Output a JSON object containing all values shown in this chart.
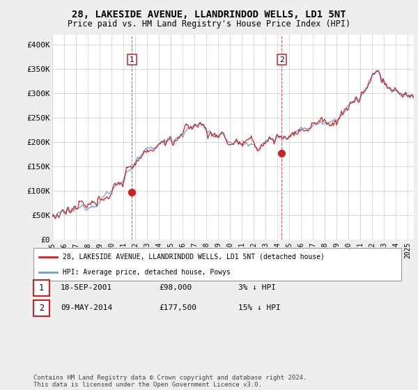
{
  "title_line1": "28, LAKESIDE AVENUE, LLANDRINDOD WELLS, LD1 5NT",
  "title_line2": "Price paid vs. HM Land Registry's House Price Index (HPI)",
  "ylabel_ticks": [
    "£0",
    "£50K",
    "£100K",
    "£150K",
    "£200K",
    "£250K",
    "£300K",
    "£350K",
    "£400K"
  ],
  "ytick_values": [
    0,
    50000,
    100000,
    150000,
    200000,
    250000,
    300000,
    350000,
    400000
  ],
  "ylim": [
    0,
    420000
  ],
  "xlim_start": 1995.0,
  "xlim_end": 2025.5,
  "hpi_color": "#7799cc",
  "price_color": "#cc2222",
  "marker1_x": 2001.72,
  "marker1_y": 98000,
  "marker2_x": 2014.36,
  "marker2_y": 177500,
  "vline1_x": 2001.72,
  "vline2_x": 2014.36,
  "legend_line1": "28, LAKESIDE AVENUE, LLANDRINDOD WELLS, LD1 5NT (detached house)",
  "legend_line2": "HPI: Average price, detached house, Powys",
  "table_row1": [
    "1",
    "18-SEP-2001",
    "£98,000",
    "3% ↓ HPI"
  ],
  "table_row2": [
    "2",
    "09-MAY-2014",
    "£177,500",
    "15% ↓ HPI"
  ],
  "footer": "Contains HM Land Registry data © Crown copyright and database right 2024.\nThis data is licensed under the Open Government Licence v3.0.",
  "bg_color": "#eeeeee",
  "plot_bg_color": "#ffffff",
  "grid_color": "#cccccc"
}
